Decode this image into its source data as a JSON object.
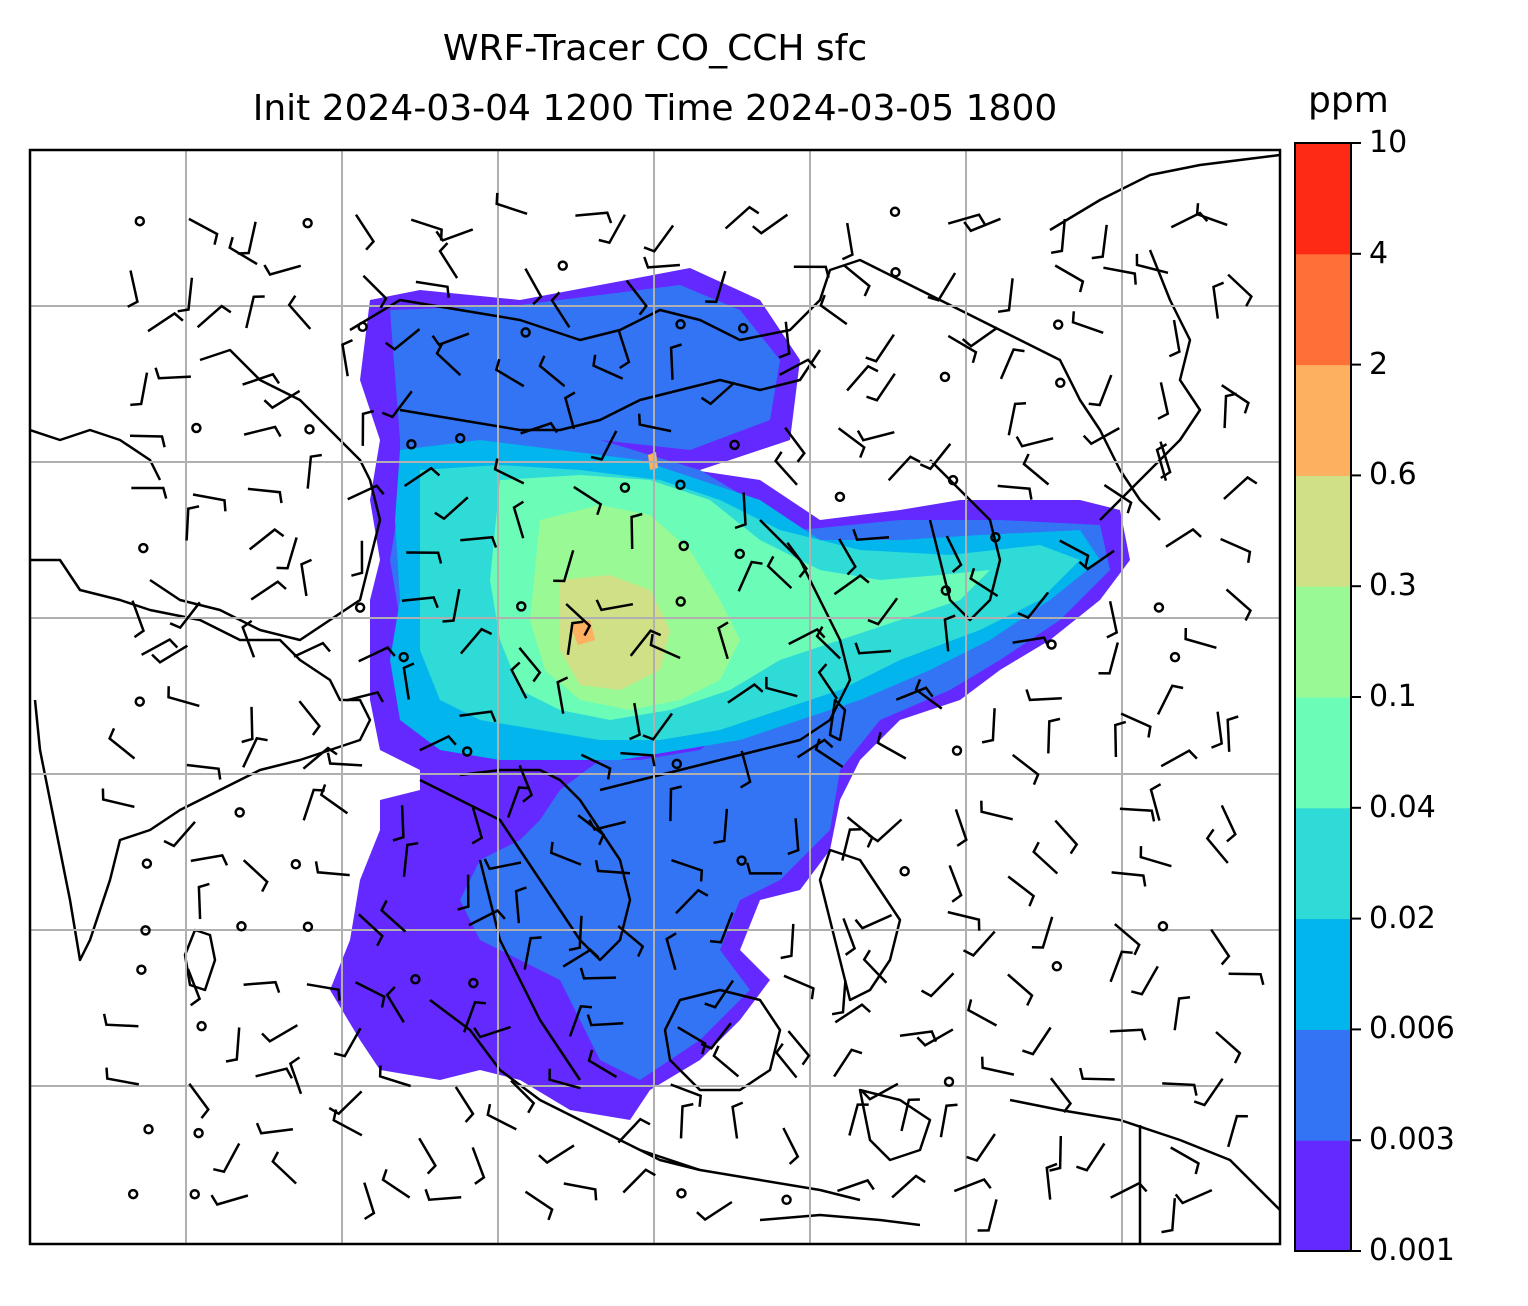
{
  "title": {
    "line1": "WRF-Tracer CO_CCH sfc",
    "line2": "Init 2024-03-04 1200 Time 2024-03-05 1800"
  },
  "colorbar": {
    "units": "ppm",
    "levels": [
      "0.001",
      "0.003",
      "0.006",
      "0.02",
      "0.04",
      "0.1",
      "0.3",
      "0.6",
      "2",
      "4",
      "10"
    ],
    "colors": [
      "#6329ff",
      "#3374f5",
      "#02b5ed",
      "#2fdbd7",
      "#6bfcb8",
      "#99fa95",
      "#cfe086",
      "#fdb060",
      "#ff7038",
      "#ff2a16"
    ]
  },
  "map": {
    "frame_color": "#000000",
    "grid_color": "#b0b0b0",
    "coast_color": "#000000"
  }
}
